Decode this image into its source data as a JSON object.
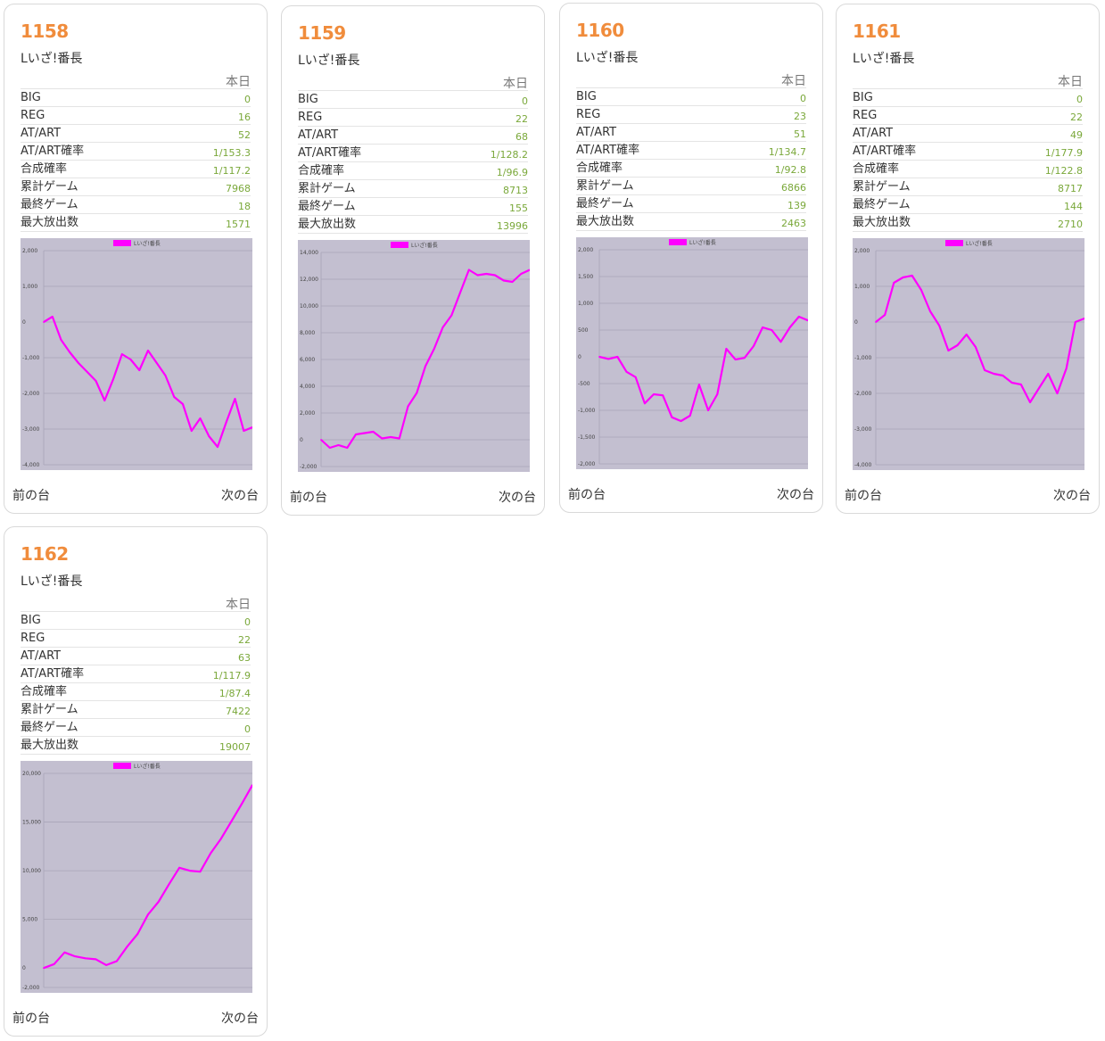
{
  "page": {
    "col_label": "本日",
    "prev_label": "前の台",
    "next_label": "次の台",
    "row_labels": [
      "BIG",
      "REG",
      "AT/ART",
      "AT/ART確率",
      "合成確率",
      "累計ゲーム",
      "最終ゲーム",
      "最大放出数"
    ]
  },
  "colors": {
    "machine_number": "#f08c3c",
    "stat_value": "#7aa83a",
    "plot_background": "#c3bfd0",
    "series_line": "#ff00ff"
  },
  "machines": [
    {
      "number": "1158",
      "name": "Lいざ!番長",
      "stats": [
        "0",
        "16",
        "52",
        "1/153.3",
        "1/117.2",
        "7968",
        "18",
        "1571"
      ]
    },
    {
      "number": "1159",
      "name": "Lいざ!番長",
      "stats": [
        "0",
        "22",
        "68",
        "1/128.2",
        "1/96.9",
        "8713",
        "155",
        "13996"
      ]
    },
    {
      "number": "1160",
      "name": "Lいざ!番長",
      "stats": [
        "0",
        "23",
        "51",
        "1/134.7",
        "1/92.8",
        "6866",
        "139",
        "2463"
      ]
    },
    {
      "number": "1161",
      "name": "Lいざ!番長",
      "stats": [
        "0",
        "22",
        "49",
        "1/177.9",
        "1/122.8",
        "8717",
        "144",
        "2710"
      ]
    },
    {
      "number": "1162",
      "name": "Lいざ!番長",
      "stats": [
        "0",
        "22",
        "63",
        "1/117.9",
        "1/87.4",
        "7422",
        "0",
        "19007"
      ]
    }
  ],
  "chart_data": [
    {
      "type": "line",
      "legend": "Lいざ!番長",
      "legend_position": "top-center",
      "grid": true,
      "ylim": [
        -4000,
        2000
      ],
      "yticks": [
        "2,000",
        "1,000",
        "0",
        "-1,000",
        "-2,000",
        "-3,000",
        "-4,000"
      ],
      "series": [
        {
          "name": "Lいざ!番長",
          "values": [
            0,
            150,
            -500,
            -850,
            -1150,
            -1400,
            -1650,
            -2200,
            -1600,
            -900,
            -1050,
            -1350,
            -800,
            -1150,
            -1500,
            -2100,
            -2300,
            -3050,
            -2700,
            -3200,
            -3500,
            -2800,
            -2150,
            -3050,
            -2950
          ]
        }
      ]
    },
    {
      "type": "line",
      "legend": "Lいざ!番長",
      "legend_position": "top-center",
      "grid": true,
      "ylim": [
        -2000,
        14000
      ],
      "yticks": [
        "14,000",
        "12,000",
        "10,000",
        "8,000",
        "6,000",
        "4,000",
        "2,000",
        "0",
        "-2,000"
      ],
      "series": [
        {
          "name": "Lいざ!番長",
          "values": [
            0,
            -600,
            -400,
            -600,
            400,
            500,
            600,
            100,
            200,
            100,
            2500,
            3500,
            5500,
            6800,
            8400,
            9300,
            11000,
            12700,
            12300,
            12400,
            12300,
            11900,
            11800,
            12400,
            12700
          ]
        }
      ]
    },
    {
      "type": "line",
      "legend": "Lいざ!番長",
      "legend_position": "top-center",
      "grid": true,
      "ylim": [
        -2000,
        2000
      ],
      "yticks": [
        "2,000",
        "1,500",
        "1,000",
        "500",
        "0",
        "-500",
        "-1,000",
        "-1,500",
        "-2,000"
      ],
      "series": [
        {
          "name": "Lいざ!番長",
          "values": [
            0,
            -40,
            0,
            -280,
            -380,
            -870,
            -700,
            -720,
            -1130,
            -1200,
            -1100,
            -520,
            -1000,
            -700,
            150,
            -50,
            -20,
            200,
            550,
            500,
            280,
            550,
            750,
            680
          ]
        }
      ]
    },
    {
      "type": "line",
      "legend": "Lいざ!番長",
      "legend_position": "top-center",
      "grid": true,
      "ylim": [
        -4000,
        2000
      ],
      "yticks": [
        "2,000",
        "1,000",
        "0",
        "-1,000",
        "-2,000",
        "-3,000",
        "-4,000"
      ],
      "series": [
        {
          "name": "Lいざ!番長",
          "values": [
            0,
            200,
            1100,
            1250,
            1300,
            900,
            300,
            -100,
            -800,
            -650,
            -350,
            -700,
            -1350,
            -1450,
            -1500,
            -1700,
            -1750,
            -2250,
            -1850,
            -1450,
            -2000,
            -1300,
            0,
            100
          ]
        }
      ]
    },
    {
      "type": "line",
      "legend": "Lいざ!番長",
      "legend_position": "top-center",
      "grid": true,
      "ylim": [
        -2000,
        20000
      ],
      "yticks": [
        "20,000",
        "15,000",
        "10,000",
        "5,000",
        "0",
        "-2,000"
      ],
      "ytick_values": [
        20000,
        15000,
        10000,
        5000,
        0,
        -2000
      ],
      "series": [
        {
          "name": "Lいざ!番長",
          "values": [
            0,
            400,
            1600,
            1200,
            1000,
            900,
            300,
            700,
            2200,
            3500,
            5500,
            6800,
            8600,
            10300,
            10000,
            9900,
            11800,
            13300,
            15100,
            16900,
            18800
          ]
        }
      ]
    }
  ]
}
